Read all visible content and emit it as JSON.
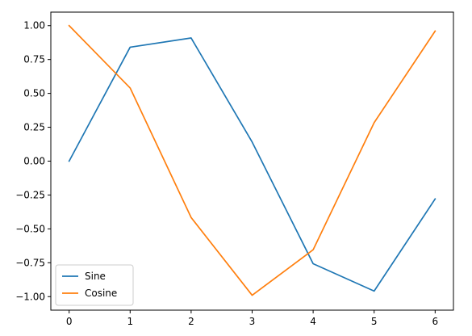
{
  "chart_data": {
    "type": "line",
    "title": "",
    "xlabel": "",
    "ylabel": "",
    "x": [
      0,
      1,
      2,
      3,
      4,
      5,
      6
    ],
    "xlim": [
      -0.3,
      6.3
    ],
    "ylim": [
      -1.0998,
      1.0998
    ],
    "xticks": [
      0,
      1,
      2,
      3,
      4,
      5,
      6
    ],
    "yticks": [
      1.0,
      0.75,
      0.5,
      0.25,
      0.0,
      -0.25,
      -0.5,
      -0.75,
      -1.0
    ],
    "xtick_labels": [
      "0",
      "1",
      "2",
      "3",
      "4",
      "5",
      "6"
    ],
    "ytick_labels": [
      "1.00",
      "0.75",
      "0.50",
      "0.25",
      "0.00",
      "−0.25",
      "−0.50",
      "−0.75",
      "−1.00"
    ],
    "grid": false,
    "legend_position": "lower-left",
    "series": [
      {
        "name": "Sine",
        "color": "#1f77b4",
        "values": [
          0.0,
          0.841,
          0.909,
          0.141,
          -0.757,
          -0.959,
          -0.279
        ]
      },
      {
        "name": "Cosine",
        "color": "#ff7f0e",
        "values": [
          1.0,
          0.54,
          -0.416,
          -0.99,
          -0.654,
          0.284,
          0.96
        ]
      }
    ]
  }
}
